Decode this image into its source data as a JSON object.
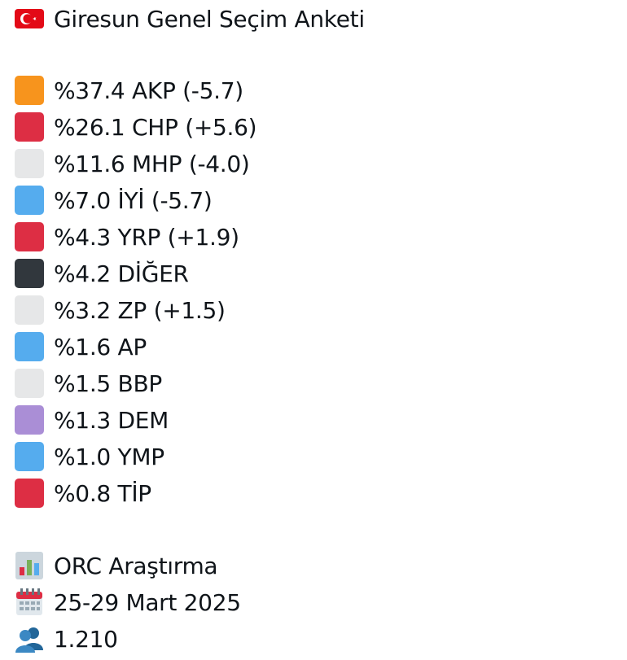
{
  "header": {
    "title": "Giresun Genel Seçim Anketi"
  },
  "results": [
    {
      "text": "%37.4 AKP (-5.7)",
      "color": "#f7941d"
    },
    {
      "text": "%26.1 CHP (+5.6)",
      "color": "#dd2e44"
    },
    {
      "text": "%11.6 MHP (-4.0)",
      "color": "#e6e7e8"
    },
    {
      "text": "%7.0 İYİ (-5.7)",
      "color": "#55acee"
    },
    {
      "text": "%4.3 YRP (+1.9)",
      "color": "#dd2e44"
    },
    {
      "text": "%4.2 DİĞER",
      "color": "#31373d"
    },
    {
      "text": "%3.2 ZP (+1.5)",
      "color": "#e6e7e8"
    },
    {
      "text": "%1.6 AP",
      "color": "#55acee"
    },
    {
      "text": "%1.5 BBP",
      "color": "#e6e7e8"
    },
    {
      "text": "%1.3 DEM",
      "color": "#aa8ed6"
    },
    {
      "text": "%1.0 YMP",
      "color": "#55acee"
    },
    {
      "text": "%0.8 TİP",
      "color": "#dd2e44"
    }
  ],
  "footer": {
    "source": "ORC Araştırma",
    "date": "25-29 Mart 2025",
    "sample": "1.210"
  }
}
